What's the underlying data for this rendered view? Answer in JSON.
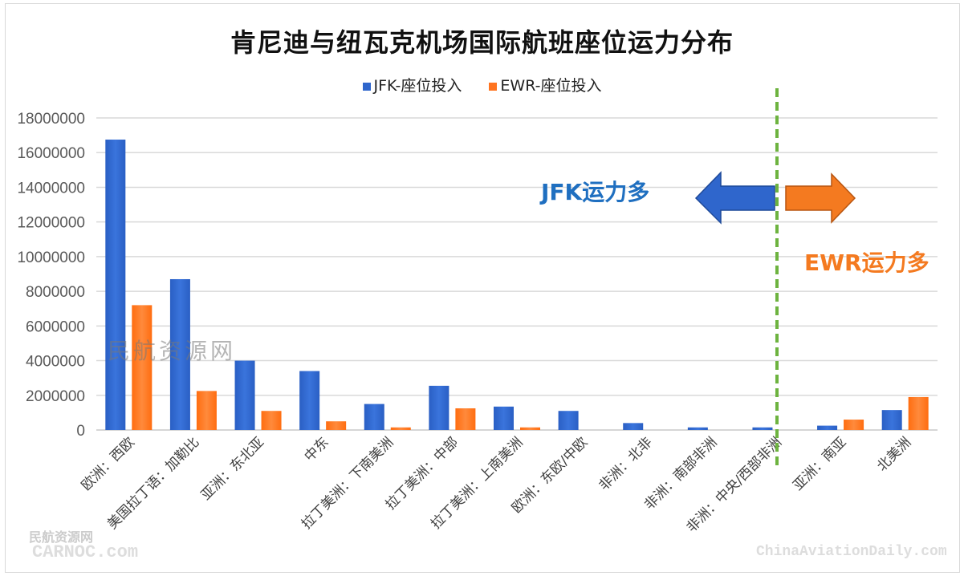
{
  "title": "肯尼迪与纽瓦克机场国际航班座位运力分布",
  "legend": [
    {
      "label": "JFK-座位投入",
      "color": "#2f66cc"
    },
    {
      "label": "EWR-座位投入",
      "color": "#ff7420"
    }
  ],
  "annotations": {
    "jfk_more": "JFK运力多",
    "ewr_more": "EWR运力多",
    "jfk_color": "#1f6fc0",
    "ewr_color": "#f47a20",
    "divider_color": "#6db33f"
  },
  "watermarks": {
    "center": "民航资源网",
    "bottom_left_cn": "民航资源网",
    "bottom_left_en": "CARNOC.com",
    "bottom_right": "ChinaAviationDaily.com"
  },
  "chart_data": {
    "type": "bar",
    "title": "肯尼迪与纽瓦克机场国际航班座位运力分布",
    "xlabel": "",
    "ylabel": "",
    "ylim": [
      0,
      18000000
    ],
    "yticks": [
      0,
      2000000,
      4000000,
      6000000,
      8000000,
      10000000,
      12000000,
      14000000,
      16000000,
      18000000
    ],
    "grid": true,
    "legend_position": "top",
    "categories": [
      "欧洲：西欧",
      "美国拉丁语：加勒比",
      "亚洲：东北亚",
      "中东",
      "拉丁美洲：下南美洲",
      "拉丁美洲：中部",
      "拉丁美洲：上南美洲",
      "欧洲：东欧/中欧",
      "非洲：北非",
      "非洲：南部非洲",
      "非洲：中央/西部非洲",
      "亚洲：南亚",
      "北美洲"
    ],
    "series": [
      {
        "name": "JFK-座位投入",
        "values": [
          16750000,
          8700000,
          4000000,
          3400000,
          1500000,
          2550000,
          1350000,
          1100000,
          400000,
          150000,
          150000,
          250000,
          1150000
        ]
      },
      {
        "name": "EWR-座位投入",
        "values": [
          7200000,
          2250000,
          1100000,
          500000,
          150000,
          1250000,
          150000,
          0,
          0,
          0,
          0,
          600000,
          1900000
        ]
      }
    ],
    "annotations": [
      "JFK运力多",
      "EWR运力多"
    ]
  }
}
